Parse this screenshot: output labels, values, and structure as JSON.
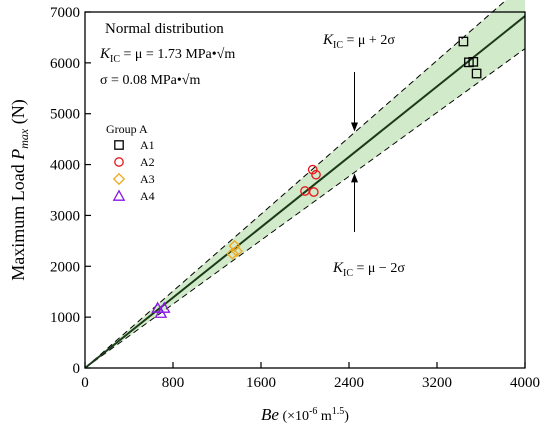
{
  "chart_data": {
    "type": "scatter",
    "xlim": [
      0,
      4000
    ],
    "ylim": [
      0,
      7000
    ],
    "x_ticks": [
      "0",
      "800",
      "1600",
      "2400",
      "3200",
      "4000"
    ],
    "y_ticks": [
      "0",
      "1000",
      "2000",
      "3000",
      "4000",
      "5000",
      "6000",
      "7000"
    ],
    "ylabel_main": "Maximum Load ",
    "ylabel_var": "P",
    "ylabel_sub": "max",
    "ylabel_unit": " (N)",
    "xlabel_var": "Be",
    "xlabel_open": " (×10",
    "xlabel_exp": "-6",
    "xlabel_unit": " m",
    "xlabel_exp2": "1.5",
    "xlabel_close": ")",
    "annotation": {
      "title": "Normal distribution",
      "line1_var": "K",
      "line1_sub": "IC",
      "line1_rest": " = μ =  1.73 MPa•√m",
      "line2": "σ = 0.08 MPa•√m"
    },
    "upper_label": {
      "var": "K",
      "sub": "IC",
      "rest": " =  μ + 2σ"
    },
    "lower_label": {
      "var": "K",
      "sub": "IC",
      "rest": " =  μ  −  2σ"
    },
    "mean_slope": 1.73,
    "band_slopes": [
      1.57,
      1.89
    ],
    "legend_title": "Group A",
    "series": [
      {
        "name": "A1",
        "marker": "square",
        "color": "#000000",
        "points": [
          [
            3440,
            6420
          ],
          [
            3490,
            6010
          ],
          [
            3530,
            6020
          ],
          [
            3560,
            5790
          ]
        ]
      },
      {
        "name": "A2",
        "marker": "circle",
        "color": "#e8141c",
        "points": [
          [
            2000,
            3480
          ],
          [
            2070,
            3900
          ],
          [
            2100,
            3800
          ],
          [
            2080,
            3460
          ]
        ]
      },
      {
        "name": "A3",
        "marker": "diamond",
        "color": "#f0a81e",
        "points": [
          [
            1340,
            2250
          ],
          [
            1360,
            2400
          ],
          [
            1380,
            2300
          ]
        ]
      },
      {
        "name": "A4",
        "marker": "triangle",
        "color": "#8a16e6",
        "points": [
          [
            660,
            1180
          ],
          [
            720,
            1180
          ],
          [
            690,
            1080
          ]
        ]
      }
    ]
  }
}
